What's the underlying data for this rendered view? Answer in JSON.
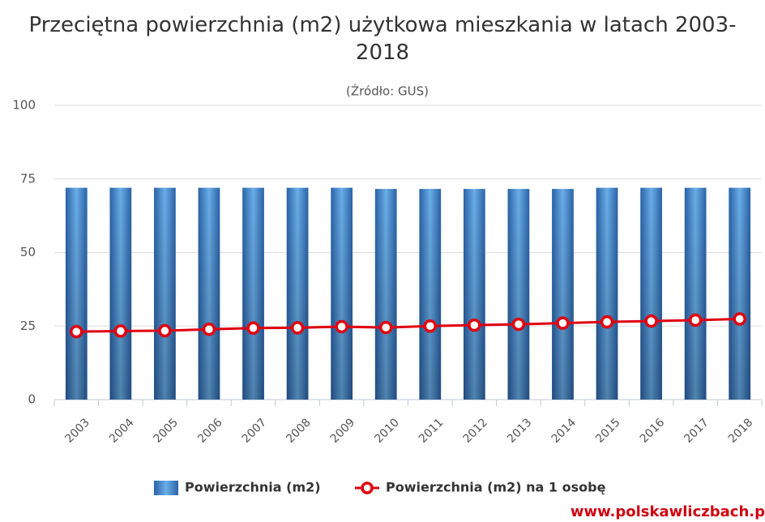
{
  "chart_data": {
    "type": "bar_line",
    "title": "Przeciętna powierzchnia (m2) użytkowa mieszkania w latach 2003-2018",
    "subtitle": "(Źródło: GUS)",
    "watermark": "www.polskawliczbach.p",
    "categories": [
      "2003",
      "2004",
      "2005",
      "2006",
      "2007",
      "2008",
      "2009",
      "2010",
      "2011",
      "2012",
      "2013",
      "2014",
      "2015",
      "2016",
      "2017",
      "2018"
    ],
    "series": [
      {
        "name": "Powierzchnia (m2)",
        "type": "bar",
        "color": "#3d7fc8",
        "values": [
          72.0,
          72.0,
          72.0,
          72.0,
          72.0,
          72.0,
          72.0,
          71.6,
          71.6,
          71.6,
          71.6,
          71.6,
          72.0,
          72.0,
          72.0,
          72.0
        ]
      },
      {
        "name": "Powierzchnia (m2) na 1 osobę",
        "type": "line",
        "color": "#e0000f",
        "values": [
          23.1,
          23.3,
          23.4,
          23.9,
          24.3,
          24.4,
          24.8,
          24.5,
          25.0,
          25.3,
          25.6,
          26.0,
          26.4,
          26.7,
          27.0,
          27.4
        ]
      }
    ],
    "ylim": [
      0,
      100
    ],
    "yticks": [
      0,
      25,
      50,
      75,
      100
    ],
    "grid": true,
    "legend": "bottom"
  }
}
